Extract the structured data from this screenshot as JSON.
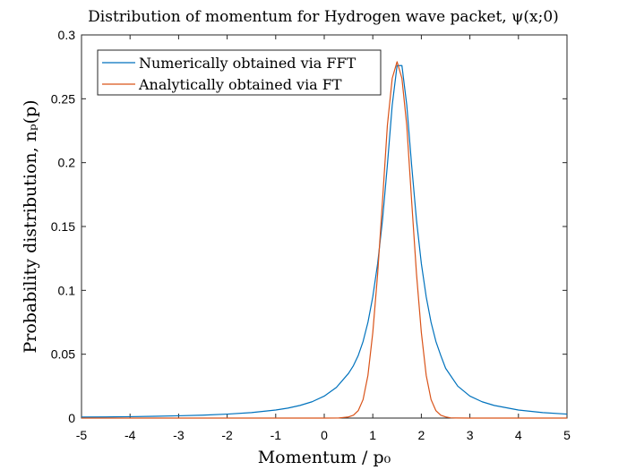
{
  "chart_data": {
    "type": "line",
    "title": "Distribution of momentum for Hydrogen wave packet, ψ(x;0)",
    "xlabel": "Momentum / p₀",
    "ylabel": "Probability distribution, nₚ(p)",
    "xlim": [
      -5,
      5
    ],
    "ylim": [
      0,
      0.3
    ],
    "xticks": [
      "-5",
      "-4",
      "-3",
      "-2",
      "-1",
      "0",
      "1",
      "2",
      "3",
      "4",
      "5"
    ],
    "yticks": [
      "0",
      "0.05",
      "0.1",
      "0.15",
      "0.2",
      "0.25",
      "0.3"
    ],
    "grid": false,
    "legend_position": "top-left",
    "series": [
      {
        "name": "Numerically obtained via FFT",
        "color": "#0072BD",
        "x": [
          -5,
          -4.5,
          -4,
          -3.5,
          -3,
          -2.5,
          -2,
          -1.5,
          -1,
          -0.75,
          -0.5,
          -0.25,
          0,
          0.25,
          0.5,
          0.6,
          0.7,
          0.8,
          0.9,
          1.0,
          1.1,
          1.2,
          1.3,
          1.4,
          1.5,
          1.6,
          1.7,
          1.8,
          1.9,
          2.0,
          2.1,
          2.2,
          2.3,
          2.4,
          2.5,
          2.75,
          3.0,
          3.25,
          3.5,
          4.0,
          4.5,
          5.0
        ],
        "y": [
          0.0008,
          0.0009,
          0.0011,
          0.0014,
          0.0018,
          0.0023,
          0.0031,
          0.0043,
          0.0063,
          0.0078,
          0.0099,
          0.0128,
          0.0172,
          0.024,
          0.035,
          0.041,
          0.049,
          0.06,
          0.075,
          0.095,
          0.121,
          0.155,
          0.198,
          0.245,
          0.276,
          0.276,
          0.245,
          0.198,
          0.155,
          0.121,
          0.095,
          0.075,
          0.06,
          0.049,
          0.039,
          0.025,
          0.0172,
          0.0128,
          0.0099,
          0.0063,
          0.0043,
          0.0031
        ]
      },
      {
        "name": "Analytically obtained via FT",
        "color": "#D95319",
        "x": [
          -5,
          -2,
          -1,
          0,
          0.3,
          0.5,
          0.6,
          0.7,
          0.8,
          0.9,
          1.0,
          1.1,
          1.2,
          1.3,
          1.4,
          1.5,
          1.6,
          1.7,
          1.8,
          1.9,
          2.0,
          2.1,
          2.2,
          2.3,
          2.4,
          2.5,
          2.6,
          2.7,
          3,
          4,
          5
        ],
        "y": [
          0,
          0,
          0,
          0,
          0.0001,
          0.0009,
          0.0022,
          0.0058,
          0.0145,
          0.0335,
          0.067,
          0.113,
          0.17,
          0.229,
          0.266,
          0.279,
          0.266,
          0.229,
          0.17,
          0.113,
          0.067,
          0.0335,
          0.0145,
          0.0058,
          0.0022,
          0.0009,
          0.0002,
          0.0001,
          0,
          0,
          0
        ]
      }
    ]
  }
}
